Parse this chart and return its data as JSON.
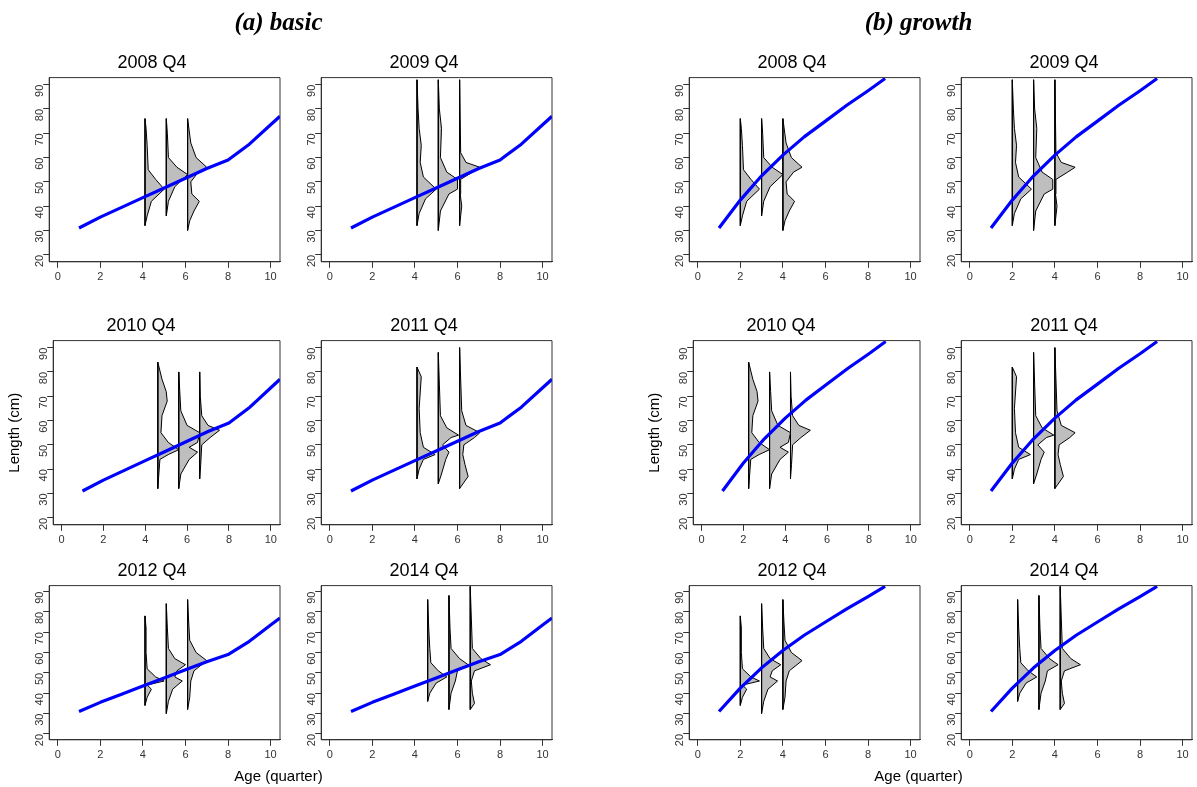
{
  "chart_data": [
    {
      "type": "other",
      "title": "(a) basic"
    },
    {
      "type": "other",
      "title": "(b) growth"
    },
    {
      "type": "line",
      "title": "2008 Q4",
      "xlim": [
        -0.4,
        10.44
      ],
      "ylim": [
        17.1,
        92.9
      ],
      "xticks": [
        0,
        2,
        4,
        6,
        8,
        10
      ],
      "yticks": [
        20,
        30,
        40,
        50,
        60,
        70,
        80,
        90
      ],
      "series": [
        {
          "type": "line",
          "color": "#0000ff",
          "x": [
            1,
            2,
            3,
            4,
            5,
            6,
            7,
            8,
            9,
            10,
            10.44
          ],
          "values": [
            31,
            35.5,
            39.5,
            43.5,
            47.5,
            51.5,
            55.5,
            59,
            65.5,
            73.5,
            77
          ]
        },
        {
          "type": "area",
          "color": "#bebebe",
          "x": [
            4.1,
            4.2,
            4.4,
            5.0,
            4.6,
            4.25,
            4.2,
            4.15,
            4.1,
            4.1
          ],
          "values": [
            32,
            36,
            42,
            47,
            51,
            55,
            65,
            72,
            76,
            32
          ]
        },
        {
          "type": "area",
          "color": "#bebebe",
          "x": [
            5.1,
            5.2,
            5.5,
            6.1,
            5.6,
            5.2,
            5.15,
            5.1,
            5.1
          ],
          "values": [
            36,
            42,
            48,
            53,
            56,
            60,
            70,
            76,
            36
          ]
        },
        {
          "type": "area",
          "color": "#bebebe",
          "x": [
            6.1,
            6.2,
            6.4,
            6.65,
            6.3,
            6.25,
            6.6,
            7.0,
            6.5,
            6.25,
            6.1,
            6.1
          ],
          "values": [
            30,
            34,
            38,
            42,
            45,
            50,
            54,
            56,
            60,
            66,
            76,
            30
          ]
        }
      ]
    },
    {
      "type": "line",
      "title": "2009 Q4",
      "xlim": [
        -0.4,
        10.44
      ],
      "ylim": [
        17.1,
        92.9
      ],
      "xticks": [
        0,
        2,
        4,
        6,
        8,
        10
      ],
      "yticks": [
        20,
        30,
        40,
        50,
        60,
        70,
        80,
        90
      ],
      "series": [
        {
          "type": "line",
          "color": "#0000ff",
          "x": [
            1,
            2,
            3,
            4,
            5,
            6,
            7,
            8,
            9,
            10,
            10.44
          ],
          "values": [
            31,
            35.5,
            39.5,
            43.5,
            47.5,
            51.5,
            55.5,
            59,
            65.5,
            73.5,
            77
          ]
        },
        {
          "type": "area",
          "color": "#bebebe",
          "x": [
            4.1,
            4.2,
            4.5,
            5.0,
            4.4,
            4.25,
            4.3,
            4.2,
            4.15,
            4.1,
            4.1
          ],
          "values": [
            32,
            37,
            43,
            47,
            52,
            58,
            65,
            72,
            80,
            92,
            32
          ]
        },
        {
          "type": "area",
          "color": "#bebebe",
          "x": [
            5.1,
            5.2,
            5.6,
            6.0,
            6.0,
            5.5,
            5.2,
            5.25,
            5.15,
            5.1,
            5.1
          ],
          "values": [
            30,
            38,
            45,
            47,
            51,
            54,
            60,
            72,
            80,
            92,
            30
          ]
        },
        {
          "type": "area",
          "color": "#bebebe",
          "x": [
            6.1,
            6.15,
            6.2,
            6.13,
            6.15,
            6.7,
            7.05,
            6.4,
            6.15,
            6.1,
            6.1
          ],
          "values": [
            32,
            36,
            40,
            45,
            51,
            54,
            56,
            58,
            62,
            92,
            32
          ]
        }
      ]
    },
    {
      "type": "line",
      "title": "2008 Q4",
      "xlim": [
        -0.4,
        10.44
      ],
      "ylim": [
        17.1,
        92.9
      ],
      "xticks": [
        0,
        2,
        4,
        6,
        8,
        10
      ],
      "yticks": [
        20,
        30,
        40,
        50,
        60,
        70,
        80,
        90
      ],
      "series": [
        {
          "type": "line",
          "color": "#0000ff",
          "x": [
            1,
            2,
            3,
            4,
            5,
            6,
            7,
            8,
            8.8
          ],
          "values": [
            31,
            42.5,
            52.5,
            61,
            68.5,
            75,
            81.5,
            87.5,
            92.5
          ]
        },
        {
          "type": "area",
          "color": "#bebebe",
          "x": [
            2,
            2.1,
            2.3,
            2.9,
            2.5,
            2.15,
            2.1,
            2.05,
            2,
            2
          ],
          "values": [
            32,
            36,
            42,
            47,
            51,
            55,
            65,
            72,
            76,
            32
          ]
        },
        {
          "type": "area",
          "color": "#bebebe",
          "x": [
            3,
            3.1,
            3.4,
            4,
            3.5,
            3.1,
            3.05,
            3,
            3
          ],
          "values": [
            36,
            42,
            48,
            53,
            56,
            60,
            70,
            76,
            36
          ]
        },
        {
          "type": "area",
          "color": "#bebebe",
          "x": [
            4,
            4.1,
            4.3,
            4.55,
            4.2,
            4.15,
            4.5,
            4.9,
            4.4,
            4.15,
            4,
            4
          ],
          "values": [
            30,
            34,
            38,
            42,
            45,
            50,
            54,
            56,
            60,
            66,
            76,
            30
          ]
        }
      ]
    },
    {
      "type": "line",
      "title": "2009 Q4",
      "xlim": [
        -0.4,
        10.44
      ],
      "ylim": [
        17.1,
        92.9
      ],
      "xticks": [
        0,
        2,
        4,
        6,
        8,
        10
      ],
      "yticks": [
        20,
        30,
        40,
        50,
        60,
        70,
        80,
        90
      ],
      "series": [
        {
          "type": "line",
          "color": "#0000ff",
          "x": [
            1,
            2,
            3,
            4,
            5,
            6,
            7,
            8,
            8.8
          ],
          "values": [
            31,
            42.5,
            52.5,
            61,
            68.5,
            75,
            81.5,
            87.5,
            92.5
          ]
        },
        {
          "type": "area",
          "color": "#bebebe",
          "x": [
            2,
            2.1,
            2.4,
            2.9,
            2.3,
            2.15,
            2.2,
            2.1,
            2.05,
            2,
            2
          ],
          "values": [
            32,
            37,
            43,
            47,
            52,
            58,
            65,
            72,
            80,
            92,
            32
          ]
        },
        {
          "type": "area",
          "color": "#bebebe",
          "x": [
            3,
            3.1,
            3.5,
            3.9,
            3.9,
            3.4,
            3.1,
            3.15,
            3.05,
            3,
            3
          ],
          "values": [
            30,
            38,
            45,
            47,
            51,
            54,
            60,
            72,
            80,
            92,
            30
          ]
        },
        {
          "type": "area",
          "color": "#bebebe",
          "x": [
            4,
            4.05,
            4.1,
            4.03,
            4.05,
            4.6,
            4.95,
            4.3,
            4.05,
            4,
            4
          ],
          "values": [
            32,
            36,
            40,
            45,
            51,
            54,
            56,
            58,
            62,
            92,
            32
          ]
        }
      ]
    },
    {
      "type": "line",
      "title": "2010 Q4",
      "ylabel": "Length (cm)",
      "xlim": [
        -0.4,
        10.44
      ],
      "ylim": [
        17.1,
        92.9
      ],
      "xticks": [
        0,
        2,
        4,
        6,
        8,
        10
      ],
      "yticks": [
        20,
        30,
        40,
        50,
        60,
        70,
        80,
        90
      ],
      "series": [
        {
          "type": "line",
          "color": "#0000ff",
          "x": [
            1,
            2,
            3,
            4,
            5,
            6,
            7,
            8,
            9,
            10,
            10.44
          ],
          "values": [
            31,
            35.5,
            39.5,
            43.5,
            47.5,
            51.5,
            55.5,
            59,
            65.5,
            73.5,
            77
          ]
        },
        {
          "type": "area",
          "color": "#bebebe",
          "x": [
            4.6,
            4.65,
            4.7,
            5.1,
            5.6,
            5.1,
            4.75,
            4.8,
            5.05,
            5.0,
            4.8,
            4.6,
            4.6
          ],
          "values": [
            32,
            38,
            44,
            46,
            48,
            51,
            55,
            62,
            68,
            72,
            77,
            84,
            32
          ]
        },
        {
          "type": "area",
          "color": "#bebebe",
          "x": [
            5.6,
            5.7,
            6.1,
            6.5,
            6.1,
            6.5,
            6.6,
            6.0,
            5.7,
            5.65,
            5.6,
            5.6
          ],
          "values": [
            32,
            38,
            44,
            47,
            49,
            51,
            55,
            58,
            64,
            72,
            80,
            32
          ]
        },
        {
          "type": "area",
          "color": "#bebebe",
          "x": [
            6.6,
            6.65,
            6.7,
            7.1,
            7.55,
            7.0,
            6.7,
            6.63,
            6.6,
            6.6
          ],
          "values": [
            36,
            42,
            50,
            53,
            56,
            58,
            62,
            70,
            80,
            36
          ]
        }
      ]
    },
    {
      "type": "line",
      "title": "2011 Q4",
      "xlim": [
        -0.4,
        10.44
      ],
      "ylim": [
        17.1,
        92.9
      ],
      "xticks": [
        0,
        2,
        4,
        6,
        8,
        10
      ],
      "yticks": [
        20,
        30,
        40,
        50,
        60,
        70,
        80,
        90
      ],
      "series": [
        {
          "type": "line",
          "color": "#0000ff",
          "x": [
            1,
            2,
            3,
            4,
            5,
            6,
            7,
            8,
            9,
            10,
            10.44
          ],
          "values": [
            31,
            35.5,
            39.5,
            43.5,
            47.5,
            51.5,
            55.5,
            59,
            65.5,
            73.5,
            77
          ]
        },
        {
          "type": "area",
          "color": "#bebebe",
          "x": [
            4.1,
            4.2,
            4.4,
            4.95,
            4.4,
            4.25,
            4.2,
            4.3,
            4.1,
            4.1
          ],
          "values": [
            36,
            40,
            44,
            46,
            49,
            55,
            65,
            78,
            82,
            36
          ]
        },
        {
          "type": "area",
          "color": "#bebebe",
          "x": [
            5.1,
            5.25,
            5.45,
            5.6,
            5.3,
            5.7,
            6.05,
            5.5,
            5.2,
            5.15,
            5.1,
            5.1
          ],
          "values": [
            34,
            38,
            44,
            47,
            50,
            53,
            54,
            57,
            62,
            75,
            88,
            34
          ]
        },
        {
          "type": "area",
          "color": "#bebebe",
          "x": [
            6.1,
            6.5,
            6.35,
            6.25,
            6.3,
            6.8,
            7.05,
            6.4,
            6.2,
            6.1,
            6.1
          ],
          "values": [
            32,
            37,
            42,
            46,
            50,
            53,
            55,
            58,
            64,
            90,
            32
          ]
        }
      ]
    },
    {
      "type": "line",
      "title": "2010 Q4",
      "ylabel": "Length (cm)",
      "xlim": [
        -0.4,
        10.44
      ],
      "ylim": [
        17.1,
        92.9
      ],
      "xticks": [
        0,
        2,
        4,
        6,
        8,
        10
      ],
      "yticks": [
        20,
        30,
        40,
        50,
        60,
        70,
        80,
        90
      ],
      "series": [
        {
          "type": "line",
          "color": "#0000ff",
          "x": [
            1,
            2,
            3,
            4,
            5,
            6,
            7,
            8,
            8.8
          ],
          "values": [
            31,
            42.5,
            52.5,
            61,
            68.5,
            75,
            81.5,
            87.5,
            92.5
          ]
        },
        {
          "type": "area",
          "color": "#bebebe",
          "x": [
            2.25,
            2.3,
            2.35,
            2.75,
            3.25,
            2.75,
            2.4,
            2.45,
            2.7,
            2.65,
            2.45,
            2.25,
            2.25
          ],
          "values": [
            32,
            38,
            44,
            46,
            48,
            51,
            55,
            62,
            68,
            72,
            77,
            84,
            32
          ]
        },
        {
          "type": "area",
          "color": "#bebebe",
          "x": [
            3.25,
            3.35,
            3.75,
            4.15,
            3.75,
            4.15,
            4.25,
            3.65,
            3.35,
            3.3,
            3.25,
            3.25
          ],
          "values": [
            32,
            38,
            44,
            47,
            49,
            51,
            55,
            58,
            64,
            72,
            80,
            32
          ]
        },
        {
          "type": "area",
          "color": "#bebebe",
          "x": [
            4.25,
            4.3,
            4.35,
            4.75,
            5.2,
            4.65,
            4.35,
            4.28,
            4.25,
            4.25
          ],
          "values": [
            36,
            42,
            50,
            53,
            56,
            58,
            62,
            70,
            80,
            36
          ]
        }
      ]
    },
    {
      "type": "line",
      "title": "2011 Q4",
      "xlim": [
        -0.4,
        10.44
      ],
      "ylim": [
        17.1,
        92.9
      ],
      "xticks": [
        0,
        2,
        4,
        6,
        8,
        10
      ],
      "yticks": [
        20,
        30,
        40,
        50,
        60,
        70,
        80,
        90
      ],
      "series": [
        {
          "type": "line",
          "color": "#0000ff",
          "x": [
            1,
            2,
            3,
            4,
            5,
            6,
            7,
            8,
            8.8
          ],
          "values": [
            31,
            42.5,
            52.5,
            61,
            68.5,
            75,
            81.5,
            87.5,
            92.5
          ]
        },
        {
          "type": "area",
          "color": "#bebebe",
          "x": [
            2,
            2.1,
            2.3,
            2.85,
            2.3,
            2.15,
            2.1,
            2.2,
            2,
            2
          ],
          "values": [
            36,
            40,
            44,
            46,
            49,
            55,
            65,
            78,
            82,
            36
          ]
        },
        {
          "type": "area",
          "color": "#bebebe",
          "x": [
            3,
            3.15,
            3.35,
            3.5,
            3.2,
            3.6,
            3.95,
            3.4,
            3.1,
            3.05,
            3,
            3
          ],
          "values": [
            34,
            38,
            44,
            47,
            50,
            53,
            54,
            57,
            62,
            75,
            88,
            34
          ]
        },
        {
          "type": "area",
          "color": "#bebebe",
          "x": [
            4,
            4.4,
            4.25,
            4.15,
            4.2,
            4.7,
            4.95,
            4.3,
            4.1,
            4,
            4
          ],
          "values": [
            32,
            37,
            42,
            46,
            50,
            53,
            55,
            58,
            64,
            90,
            32
          ]
        }
      ]
    },
    {
      "type": "line",
      "title": "2012 Q4",
      "xlabel": "Age (quarter)",
      "xlim": [
        -0.4,
        10.44
      ],
      "ylim": [
        17.1,
        92.9
      ],
      "xticks": [
        0,
        2,
        4,
        6,
        8,
        10
      ],
      "yticks": [
        20,
        30,
        40,
        50,
        60,
        70,
        80,
        90
      ],
      "series": [
        {
          "type": "line",
          "color": "#0000ff",
          "x": [
            1,
            2,
            3,
            4,
            5,
            6,
            7,
            8,
            9,
            10,
            10.44
          ],
          "values": [
            31,
            35.5,
            39.5,
            43.5,
            47.5,
            51.5,
            55.5,
            59,
            65.5,
            73.5,
            77
          ]
        },
        {
          "type": "area",
          "color": "#bebebe",
          "x": [
            4.1,
            4.2,
            4.4,
            4.2,
            5.0,
            4.6,
            4.2,
            4.15,
            4.15,
            4.1,
            4.1
          ],
          "values": [
            34,
            38,
            42,
            44,
            46,
            48,
            52,
            60,
            72,
            78,
            34
          ]
        },
        {
          "type": "area",
          "color": "#bebebe",
          "x": [
            5.1,
            5.2,
            5.4,
            5.85,
            5.5,
            5.6,
            6.0,
            5.5,
            5.2,
            5.15,
            5.1,
            5.1
          ],
          "values": [
            30,
            36,
            42,
            46,
            48,
            51,
            54,
            57,
            62,
            72,
            84,
            30
          ]
        },
        {
          "type": "area",
          "color": "#bebebe",
          "x": [
            6.1,
            6.2,
            6.25,
            6.4,
            7.0,
            6.5,
            6.2,
            6.15,
            6.1,
            6.1
          ],
          "values": [
            32,
            38,
            46,
            51,
            56,
            60,
            66,
            75,
            86,
            32
          ]
        }
      ]
    },
    {
      "type": "line",
      "title": "2014 Q4",
      "xlim": [
        -0.4,
        10.44
      ],
      "ylim": [
        17.1,
        92.9
      ],
      "xticks": [
        0,
        2,
        4,
        6,
        8,
        10
      ],
      "yticks": [
        20,
        30,
        40,
        50,
        60,
        70,
        80,
        90
      ],
      "series": [
        {
          "type": "line",
          "color": "#0000ff",
          "x": [
            1,
            2,
            3,
            4,
            5,
            6,
            7,
            8,
            9,
            10,
            10.44
          ],
          "values": [
            31,
            35.5,
            39.5,
            43.5,
            47.5,
            51.5,
            55.5,
            59,
            65.5,
            73.5,
            77
          ]
        },
        {
          "type": "area",
          "color": "#bebebe",
          "x": [
            4.6,
            4.7,
            5.0,
            5.5,
            5.1,
            4.75,
            4.7,
            4.65,
            4.6,
            4.6
          ],
          "values": [
            36,
            40,
            45,
            48,
            51,
            55,
            62,
            72,
            86,
            36
          ]
        },
        {
          "type": "area",
          "color": "#bebebe",
          "x": [
            5.6,
            5.7,
            5.9,
            6.0,
            6.5,
            6.1,
            5.7,
            5.65,
            5.6,
            5.6
          ],
          "values": [
            32,
            40,
            46,
            51,
            54,
            57,
            62,
            72,
            88,
            32
          ]
        },
        {
          "type": "area",
          "color": "#bebebe",
          "x": [
            6.6,
            6.8,
            6.7,
            6.65,
            6.8,
            7.55,
            7.1,
            6.7,
            6.6,
            6.6
          ],
          "values": [
            32,
            35,
            40,
            46,
            51,
            54,
            57,
            62,
            92.5,
            32
          ]
        }
      ]
    },
    {
      "type": "line",
      "title": "2012 Q4",
      "xlabel": "Age (quarter)",
      "xlim": [
        -0.4,
        10.44
      ],
      "ylim": [
        17.1,
        92.9
      ],
      "xticks": [
        0,
        2,
        4,
        6,
        8,
        10
      ],
      "yticks": [
        20,
        30,
        40,
        50,
        60,
        70,
        80,
        90
      ],
      "series": [
        {
          "type": "line",
          "color": "#0000ff",
          "x": [
            1,
            2,
            3,
            4,
            5,
            6,
            7,
            8,
            8.8
          ],
          "values": [
            31,
            42.5,
            52.5,
            61,
            68.5,
            75,
            81.5,
            87.5,
            92.5
          ]
        },
        {
          "type": "area",
          "color": "#bebebe",
          "x": [
            2,
            2.1,
            2.3,
            2.1,
            2.9,
            2.5,
            2.1,
            2.05,
            2.05,
            2,
            2
          ],
          "values": [
            34,
            38,
            42,
            44,
            46,
            48,
            52,
            60,
            72,
            78,
            34
          ]
        },
        {
          "type": "area",
          "color": "#bebebe",
          "x": [
            3,
            3.1,
            3.3,
            3.75,
            3.4,
            3.5,
            3.9,
            3.4,
            3.1,
            3.05,
            3,
            3
          ],
          "values": [
            30,
            36,
            42,
            46,
            48,
            51,
            54,
            57,
            62,
            72,
            84,
            30
          ]
        },
        {
          "type": "area",
          "color": "#bebebe",
          "x": [
            4,
            4.1,
            4.15,
            4.3,
            4.9,
            4.4,
            4.1,
            4.05,
            4,
            4
          ],
          "values": [
            32,
            38,
            46,
            51,
            56,
            60,
            66,
            75,
            86,
            32
          ]
        }
      ]
    },
    {
      "type": "line",
      "title": "2014 Q4",
      "xlim": [
        -0.4,
        10.44
      ],
      "ylim": [
        17.1,
        92.9
      ],
      "xticks": [
        0,
        2,
        4,
        6,
        8,
        10
      ],
      "yticks": [
        20,
        30,
        40,
        50,
        60,
        70,
        80,
        90
      ],
      "series": [
        {
          "type": "line",
          "color": "#0000ff",
          "x": [
            1,
            2,
            3,
            4,
            5,
            6,
            7,
            8,
            8.8
          ],
          "values": [
            31,
            42.5,
            52.5,
            61,
            68.5,
            75,
            81.5,
            87.5,
            92.5
          ]
        },
        {
          "type": "area",
          "color": "#bebebe",
          "x": [
            2.25,
            2.35,
            2.65,
            3.15,
            2.75,
            2.4,
            2.35,
            2.3,
            2.25,
            2.25
          ],
          "values": [
            36,
            40,
            45,
            48,
            51,
            55,
            62,
            72,
            86,
            36
          ]
        },
        {
          "type": "area",
          "color": "#bebebe",
          "x": [
            3.25,
            3.35,
            3.55,
            3.65,
            4.15,
            3.75,
            3.35,
            3.3,
            3.25,
            3.25
          ],
          "values": [
            32,
            40,
            46,
            51,
            54,
            57,
            62,
            72,
            88,
            32
          ]
        },
        {
          "type": "area",
          "color": "#bebebe",
          "x": [
            4.25,
            4.45,
            4.35,
            4.3,
            4.45,
            5.2,
            4.75,
            4.35,
            4.25,
            4.25
          ],
          "values": [
            32,
            35,
            40,
            46,
            51,
            54,
            57,
            62,
            92.5,
            32
          ]
        }
      ]
    }
  ]
}
